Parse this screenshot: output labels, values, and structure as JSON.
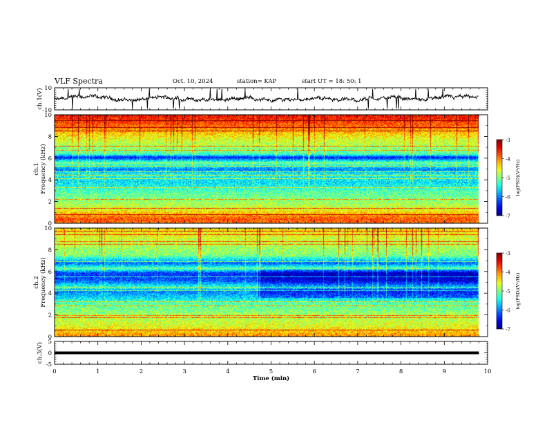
{
  "header": {
    "title": "VLF Spectra",
    "date": "Oct. 10, 2024",
    "station": "station= KAP",
    "start_ut": "start  UT  =   18: 50: 1"
  },
  "chart_data": [
    {
      "name": "ch1-voltage",
      "type": "line",
      "ylabel": "ch.1(V)",
      "ylim": [
        -10,
        10
      ],
      "yticks": [
        10,
        -10
      ],
      "xlim": [
        0,
        10
      ],
      "x_extent_min": 9.8,
      "series": [
        {
          "name": "ch.1",
          "baseline": 0,
          "noise_amplitude": 2.5,
          "spike_amplitude": 9
        }
      ]
    },
    {
      "name": "ch1-spectrogram",
      "type": "heatmap",
      "ylabel": "ch.1\nFrequency (kHz)",
      "ylabel_lines": [
        "ch.1",
        "Frequency (kHz)"
      ],
      "ylim": [
        0,
        10
      ],
      "yticks": [
        0,
        2,
        4,
        6,
        8,
        10
      ],
      "xlim": [
        0,
        10
      ],
      "x_extent_min": 9.8,
      "band_profile_khz": [
        [
          0.0,
          -4.0
        ],
        [
          0.4,
          -3.8
        ],
        [
          0.9,
          -4.2
        ],
        [
          1.3,
          -4.6
        ],
        [
          2.0,
          -4.9
        ],
        [
          3.0,
          -5.2
        ],
        [
          3.8,
          -5.6
        ],
        [
          4.5,
          -5.4
        ],
        [
          5.0,
          -6.0
        ],
        [
          5.6,
          -5.0
        ],
        [
          6.1,
          -6.5
        ],
        [
          6.4,
          -5.2
        ],
        [
          7.0,
          -4.9
        ],
        [
          8.0,
          -4.5
        ],
        [
          9.0,
          -3.9
        ],
        [
          10.0,
          -3.5
        ]
      ],
      "colorbar": {
        "label": "log(PSD)(V²/Hz)",
        "min": -7,
        "max": -3,
        "ticks": [
          -3,
          -4,
          -5,
          -6,
          -7
        ]
      }
    },
    {
      "name": "ch2-spectrogram",
      "type": "heatmap",
      "ylabel": "ch.2\nFrequency (kHz)",
      "ylabel_lines": [
        "ch.2",
        "Frequency (kHz)"
      ],
      "ylim": [
        0,
        10
      ],
      "yticks": [
        0,
        2,
        4,
        6,
        8,
        10
      ],
      "xlim": [
        0,
        10
      ],
      "x_extent_min": 9.8,
      "band_profile_khz": [
        [
          0.0,
          -4.0
        ],
        [
          0.5,
          -4.3
        ],
        [
          1.0,
          -4.6
        ],
        [
          1.8,
          -4.8
        ],
        [
          2.5,
          -5.0
        ],
        [
          3.2,
          -5.2
        ],
        [
          3.6,
          -5.6
        ],
        [
          4.2,
          -6.0
        ],
        [
          4.6,
          -5.3
        ],
        [
          5.2,
          -6.2
        ],
        [
          5.9,
          -6.3
        ],
        [
          6.3,
          -5.1
        ],
        [
          6.8,
          -6.1
        ],
        [
          7.5,
          -5.0
        ],
        [
          8.5,
          -4.8
        ],
        [
          10.0,
          -4.4
        ]
      ],
      "quiet_after_min": 4.7,
      "colorbar": {
        "label": "log(PSD)(V²/Hz)",
        "min": -7,
        "max": -3,
        "ticks": [
          -3,
          -4,
          -5,
          -6,
          -7
        ]
      }
    },
    {
      "name": "ch3-voltage",
      "type": "line",
      "ylabel": "ch.3(V)",
      "ylim": [
        -5,
        5
      ],
      "yticks": [
        5,
        0,
        -5
      ],
      "xlim": [
        0,
        10
      ],
      "x_extent_min": 9.8,
      "series": [
        {
          "name": "ch.3",
          "baseline": 0,
          "band_halfwidth": 0.6
        }
      ]
    }
  ],
  "x_axis": {
    "label": "Time  (min)",
    "ticks": [
      0,
      1,
      2,
      3,
      4,
      5,
      6,
      7,
      8,
      9,
      10
    ]
  }
}
